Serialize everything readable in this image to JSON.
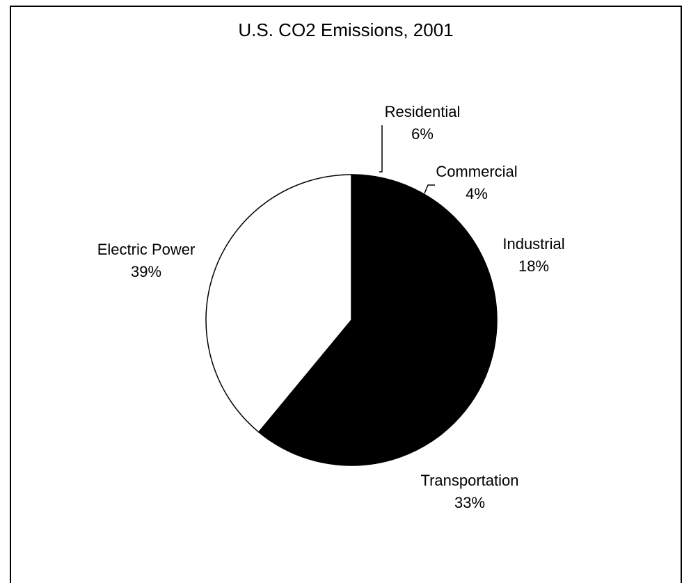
{
  "chart_data": {
    "type": "pie",
    "title": "U.S. CO2 Emissions, 2001",
    "slices": [
      {
        "label": "Residential",
        "percent_label": "6%",
        "value": 6
      },
      {
        "label": "Commercial",
        "percent_label": "4%",
        "value": 4
      },
      {
        "label": "Industrial",
        "percent_label": "18%",
        "value": 18
      },
      {
        "label": "Transportation",
        "percent_label": "33%",
        "value": 33
      },
      {
        "label": "Electric Power",
        "percent_label": "39%",
        "value": 39
      }
    ],
    "colors": {
      "filled": "#000000",
      "empty": "#ffffff",
      "outline": "#000000"
    },
    "legend": "none"
  }
}
